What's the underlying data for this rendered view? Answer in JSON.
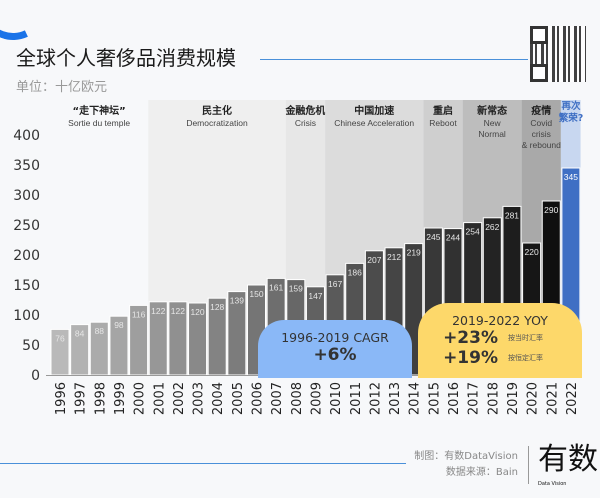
{
  "header": {
    "title": "全球个人奢侈品消费规模",
    "unit": "单位：十亿欧元"
  },
  "footer": {
    "made_by": "制图：有数DataVision",
    "source": "数据来源：Bain",
    "logo": "有数",
    "logo_sub": "Data Vision"
  },
  "callouts": {
    "cagr": {
      "title": "1996-2019 CAGR",
      "value": "+6%"
    },
    "yoy": {
      "title": "2019-2022 YOY",
      "rows": [
        {
          "value": "+23%",
          "note": "按当时汇率"
        },
        {
          "value": "+19%",
          "note": "按恒定汇率"
        }
      ]
    }
  },
  "chart_data": {
    "type": "bar",
    "title": "全球个人奢侈品消费规模",
    "ylabel": "单位：十亿欧元",
    "ylim": [
      0,
      400
    ],
    "yticks": [
      0,
      50,
      100,
      150,
      200,
      250,
      300,
      350,
      400
    ],
    "categories": [
      "1996",
      "1997",
      "1998",
      "1999",
      "2000",
      "2001",
      "2002",
      "2003",
      "2004",
      "2005",
      "2006",
      "2007",
      "2008",
      "2009",
      "2010",
      "2011",
      "2012",
      "2013",
      "2014",
      "2015",
      "2016",
      "2017",
      "2018",
      "2019",
      "2020",
      "2021",
      "2022"
    ],
    "values": [
      76,
      84,
      88,
      98,
      116,
      122,
      122,
      120,
      128,
      139,
      150,
      161,
      159,
      147,
      167,
      186,
      207,
      212,
      219,
      245,
      244,
      254,
      262,
      281,
      220,
      290,
      345
    ],
    "highlight_color": "#3f6fc4",
    "eras": [
      {
        "zh": "“走下神坛”",
        "en": "Sortie du temple",
        "start": "1996",
        "end": "2000",
        "color": "#f7f8fa"
      },
      {
        "zh": "民主化",
        "en": "Democratization",
        "start": "2001",
        "end": "2007",
        "color": "#efefef"
      },
      {
        "zh": "金融危机",
        "en": "Crisis",
        "start": "2008",
        "end": "2009",
        "color": "#e7e7e7"
      },
      {
        "zh": "中国加速",
        "en": "Chinese Acceleration",
        "start": "2010",
        "end": "2014",
        "color": "#dcdcdc"
      },
      {
        "zh": "重启",
        "en": "Reboot",
        "start": "2015",
        "end": "2016",
        "color": "#cfcfcf"
      },
      {
        "zh": "新常态",
        "en": "New Normal",
        "start": "2017",
        "end": "2019",
        "color": "#bdbdbd"
      },
      {
        "zh": "疫情",
        "en": "Covid crisis & rebound",
        "start": "2020",
        "end": "2021",
        "color": "#a9a9a9"
      },
      {
        "zh": "再次繁荣?",
        "en": "",
        "start": "2022",
        "end": "2022",
        "color": "#c8d7f0"
      }
    ]
  }
}
